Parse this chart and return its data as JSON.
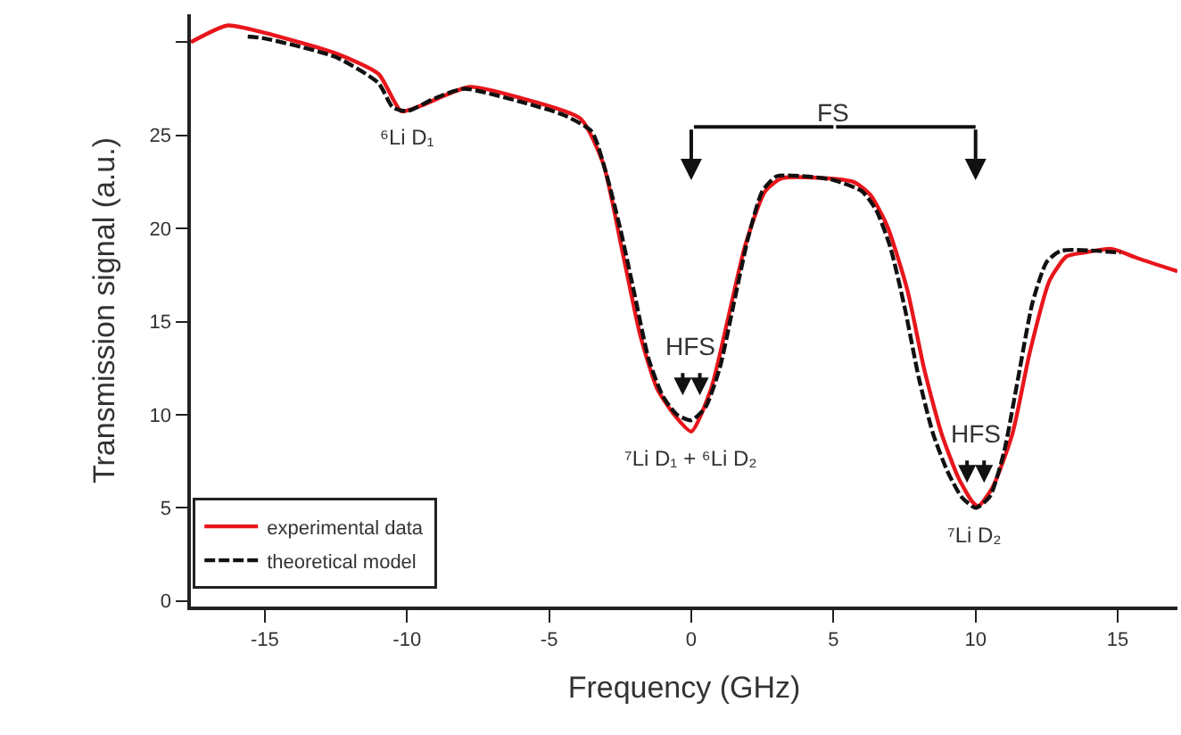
{
  "chart_data": {
    "type": "line",
    "xlabel": "Frequency (GHz)",
    "ylabel": "Transmission signal (a.u.)",
    "xlim": [
      -17.6,
      17.1
    ],
    "ylim": [
      -0.3,
      31.5
    ],
    "xticks": [
      -15,
      -10,
      -5,
      0,
      5,
      10,
      15
    ],
    "yticks": [
      0,
      5,
      10,
      15,
      20,
      25,
      {
        "value": 30,
        "label": null
      }
    ],
    "grid": false,
    "legend": "bottom left",
    "marker": "none",
    "series": [
      {
        "name": "experimental data",
        "color": "#e8161b",
        "line_style": "solid",
        "x": [
          -17.6,
          -16.3,
          -15,
          -12.5,
          -11,
          -10.2,
          -9.5,
          -7.8,
          -6,
          -3.9,
          -3.1,
          -2.4,
          -1.8,
          -1.2,
          -0.6,
          0,
          0.7,
          1.3,
          1.9,
          2.6,
          3.2,
          5.7,
          6.3,
          6.9,
          7.6,
          8.2,
          8.8,
          9.4,
          9.9,
          10.1,
          10.6,
          11.3,
          11.9,
          12.6,
          13.2,
          13.8,
          14.8,
          15.7,
          17.1
        ],
        "values": [
          30.0,
          30.9,
          30.5,
          29.4,
          28.3,
          26.3,
          26.6,
          27.6,
          27.0,
          25.9,
          23.5,
          18.6,
          14.3,
          11.4,
          10.0,
          9.1,
          11.4,
          15.2,
          19.1,
          22.0,
          22.7,
          22.5,
          21.8,
          20.1,
          16.7,
          12.4,
          9.0,
          6.6,
          5.3,
          5.1,
          6.1,
          9.0,
          13.3,
          17.2,
          18.5,
          18.7,
          18.9,
          18.4,
          17.7
        ]
      },
      {
        "name": "theoretical model",
        "color": "#111111",
        "line_style": "dashed",
        "x": [
          -15.6,
          -15,
          -12.5,
          -11,
          -10.5,
          -10,
          -9,
          -8,
          -6,
          -4.5,
          -3.5,
          -3,
          -2.5,
          -2,
          -1.5,
          -1,
          -0.5,
          0,
          0.5,
          1,
          1.5,
          2,
          2.5,
          3,
          4,
          5,
          6,
          6.5,
          7,
          7.5,
          8,
          8.5,
          9,
          9.5,
          10,
          10.5,
          11,
          11.5,
          12,
          12.5,
          13,
          15.1
        ],
        "values": [
          30.3,
          30.2,
          29.2,
          27.8,
          26.5,
          26.3,
          27.0,
          27.5,
          26.8,
          26.1,
          25.2,
          23.0,
          20.0,
          16.5,
          13.0,
          11.0,
          10.0,
          9.7,
          10.4,
          12.5,
          16.0,
          19.5,
          22.0,
          22.8,
          22.8,
          22.6,
          22.0,
          21.0,
          19.0,
          15.8,
          12.0,
          9.0,
          7.0,
          5.6,
          5.0,
          5.6,
          8.0,
          12.0,
          16.0,
          18.2,
          18.8,
          18.7
        ]
      }
    ],
    "annotations": [
      {
        "text": "⁶Li D₁",
        "x": -10,
        "y": 26.3
      },
      {
        "text": "⁷Li D₁ + ⁶Li D₂",
        "x": 0,
        "y": 9.1
      },
      {
        "text": "⁷Li D₂",
        "x": 10,
        "y": 5.0
      },
      {
        "text": "HFS",
        "x": 0,
        "y": 9.7
      },
      {
        "text": "HFS",
        "x": 10,
        "y": 5.0
      },
      "FS"
    ]
  }
}
